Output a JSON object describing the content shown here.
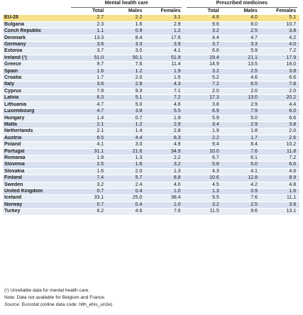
{
  "header": {
    "group1": "Mental health care",
    "group2": "Prescribed medicines",
    "cols": [
      "Total",
      "Males",
      "Females",
      "Total",
      "Males",
      "Females"
    ]
  },
  "rows": [
    {
      "label": "EU-28",
      "v": [
        "2.7",
        "2.2",
        "3.1",
        "4.6",
        "4.0",
        "5.1"
      ]
    },
    {
      "label": "Bulgaria",
      "v": [
        "2.3",
        "1.6",
        "2.9",
        "9.6",
        "8.0",
        "10.7"
      ]
    },
    {
      "label": "Czech Republic",
      "v": [
        "1.1",
        "0.9",
        "1.2",
        "3.2",
        "2.5",
        "3.8"
      ]
    },
    {
      "label": "Denmark",
      "v": [
        "13.3",
        "8.4",
        "17.6",
        "4.4",
        "4.7",
        "4.2"
      ]
    },
    {
      "label": "Germany",
      "v": [
        "3.6",
        "3.3",
        "3.9",
        "3.7",
        "3.3",
        "4.0"
      ]
    },
    {
      "label": "Estonia",
      "v": [
        "3.7",
        "3.0",
        "4.1",
        "6.6",
        "5.9",
        "7.2"
      ]
    },
    {
      "label": "Ireland (¹)",
      "v": [
        "51.0",
        "50.1",
        "51.9",
        "19.4",
        "21.1",
        "17.9"
      ]
    },
    {
      "label": "Greece",
      "v": [
        "9.7",
        "7.6",
        "11.4",
        "14.9",
        "13.5",
        "16.0"
      ]
    },
    {
      "label": "Spain",
      "v": [
        "1.6",
        "1.2",
        "1.9",
        "3.2",
        "2.5",
        "3.8"
      ]
    },
    {
      "label": "Croatia",
      "v": [
        "1.7",
        "2.0",
        "1.5",
        "5.2",
        "4.6",
        "6.6"
      ]
    },
    {
      "label": "Italy",
      "v": [
        "3.6",
        "2.8",
        "4.3",
        "7.2",
        "6.5",
        "7.8"
      ]
    },
    {
      "label": "Cyprus",
      "v": [
        "7.9",
        "9.3",
        "7.1",
        "2.0",
        "2.0",
        "2.0"
      ]
    },
    {
      "label": "Latvia",
      "v": [
        "6.3",
        "5.1",
        "7.2",
        "17.3",
        "13.0",
        "20.2"
      ]
    },
    {
      "label": "Lithuania",
      "v": [
        "4.7",
        "5.0",
        "4.6",
        "3.8",
        "2.9",
        "4.4"
      ]
    },
    {
      "label": "Luxembourg",
      "v": [
        "4.7",
        "3.8",
        "5.5",
        "6.9",
        "7.9",
        "6.0"
      ]
    },
    {
      "label": "Hungary",
      "v": [
        "1.4",
        "0.7",
        "1.9",
        "5.9",
        "5.0",
        "6.6"
      ]
    },
    {
      "label": "Malta",
      "v": [
        "2.1",
        "1.2",
        "2.9",
        "3.4",
        "2.9",
        "3.8"
      ]
    },
    {
      "label": "Netherlands",
      "v": [
        "2.1",
        "1.4",
        "2.8",
        "1.9",
        "1.8",
        "2.0"
      ]
    },
    {
      "label": "Austria",
      "v": [
        "6.5",
        "4.4",
        "8.3",
        "2.2",
        "1.7",
        "2.6"
      ]
    },
    {
      "label": "Poland",
      "v": [
        "4.1",
        "3.0",
        "4.9",
        "9.4",
        "8.4",
        "10.2"
      ]
    },
    {
      "label": "Portugal",
      "v": [
        "31.1",
        "21.6",
        "34.9",
        "10.0",
        "7.6",
        "11.8"
      ]
    },
    {
      "label": "Romania",
      "v": [
        "1.8",
        "1.3",
        "2.2",
        "6.7",
        "6.1",
        "7.2"
      ]
    },
    {
      "label": "Slovenia",
      "v": [
        "2.5",
        "1.6",
        "3.2",
        "5.8",
        "5.0",
        "6.6"
      ]
    },
    {
      "label": "Slovakia",
      "v": [
        "1.6",
        "2.0",
        "1.3",
        "4.3",
        "4.1",
        "4.6"
      ]
    },
    {
      "label": "Finland",
      "v": [
        "7.4",
        "5.7",
        "8.8",
        "10.6",
        "12.8",
        "8.9"
      ]
    },
    {
      "label": "Sweden",
      "v": [
        "3.2",
        "2.4",
        "4.0",
        "4.5",
        "4.2",
        "4.8"
      ]
    },
    {
      "label": "United Kingdom",
      "v": [
        "0.7",
        "0.4",
        "1.0",
        "1.3",
        "0.9",
        "1.6"
      ]
    },
    {
      "label": "Iceland",
      "v": [
        "33.1",
        "25.0",
        "38.4",
        "9.5",
        "7.6",
        "11.1"
      ]
    },
    {
      "label": "Norway",
      "v": [
        "0.7",
        "0.4",
        "1.0",
        "3.2",
        "2.5",
        "3.9"
      ]
    },
    {
      "label": "Turkey",
      "v": [
        "6.2",
        "4.6",
        "7.6",
        "11.5",
        "9.6",
        "13.1"
      ]
    }
  ],
  "notes": {
    "n1": "(¹) Unreliable data for mental health care.",
    "n2": "Note: Data not available for Belgium and France.",
    "source_label": "Source:",
    "source_text": "Eurostat (online data code: hlth_ehis_un2e)"
  }
}
